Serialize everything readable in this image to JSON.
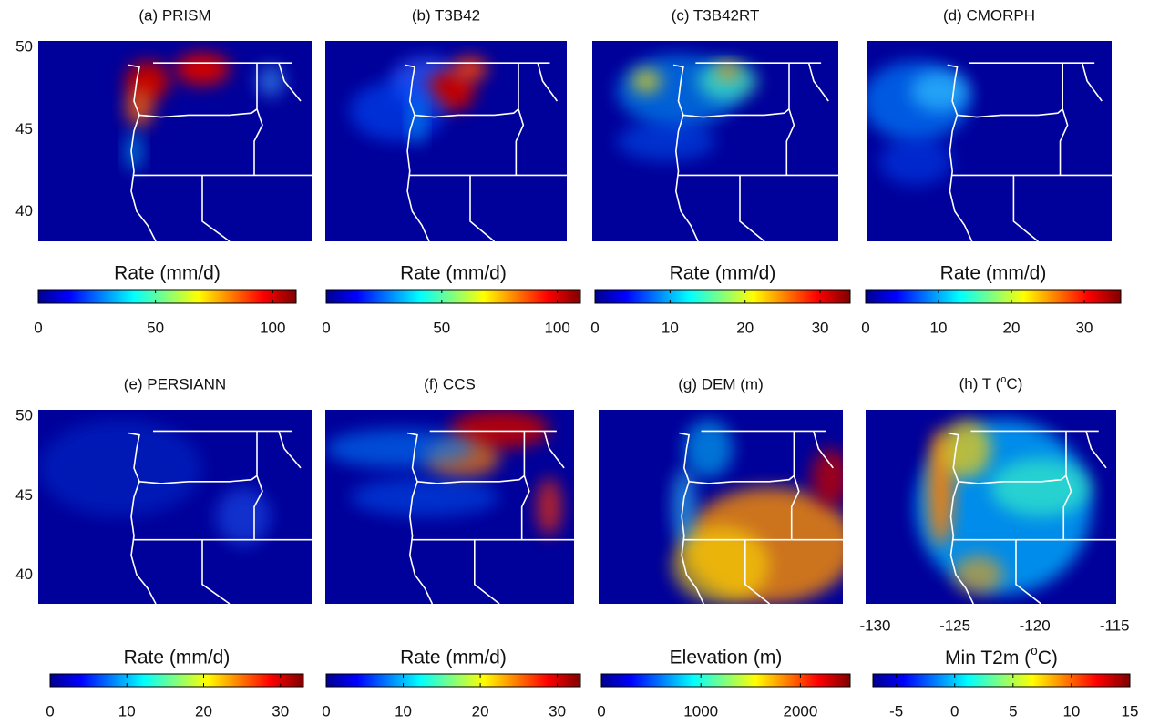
{
  "lat_lim": [
    38.2,
    50.4
  ],
  "lat_ticks": [
    50,
    45,
    40
  ],
  "lon_lim": [
    -130.6,
    -114.9
  ],
  "lon_ticks": [
    -130,
    -125,
    -120,
    -115
  ],
  "panels": [
    {
      "title": "(a) PRISM",
      "colorbar": {
        "label": "Rate (mm/d)",
        "lim": [
          0,
          110
        ],
        "ticks": [
          0,
          50,
          100
        ]
      }
    },
    {
      "title": "(b) T3B42",
      "colorbar": {
        "label": "Rate (mm/d)",
        "lim": [
          0,
          110
        ],
        "ticks": [
          0,
          50,
          100
        ]
      }
    },
    {
      "title": "(c) T3B42RT",
      "colorbar": {
        "label": "Rate (mm/d)",
        "lim": [
          0,
          34
        ],
        "ticks": [
          0,
          10,
          20,
          30
        ]
      }
    },
    {
      "title": "(d) CMORPH",
      "colorbar": {
        "label": "Rate (mm/d)",
        "lim": [
          0,
          35
        ],
        "ticks": [
          0,
          10,
          20,
          30
        ]
      }
    },
    {
      "title": "(e) PERSIANN",
      "colorbar": {
        "label": "Rate (mm/d)",
        "lim": [
          0,
          33
        ],
        "ticks": [
          0,
          10,
          20,
          30
        ]
      }
    },
    {
      "title": "(f) CCS",
      "colorbar": {
        "label": "Rate (mm/d)",
        "lim": [
          0,
          33
        ],
        "ticks": [
          0,
          10,
          20,
          30
        ]
      }
    },
    {
      "title": "(g) DEM (m)",
      "colorbar": {
        "label": "Elevation (m)",
        "lim": [
          0,
          2500
        ],
        "ticks": [
          0,
          1000,
          2000
        ]
      }
    },
    {
      "title": [
        "(h) T (",
        "o",
        "C)"
      ],
      "colorbar": {
        "label": [
          "Min T2m (",
          "o",
          "C)"
        ],
        "lim": [
          -7,
          15
        ],
        "ticks": [
          -5,
          0,
          5,
          10,
          15
        ]
      }
    }
  ]
}
